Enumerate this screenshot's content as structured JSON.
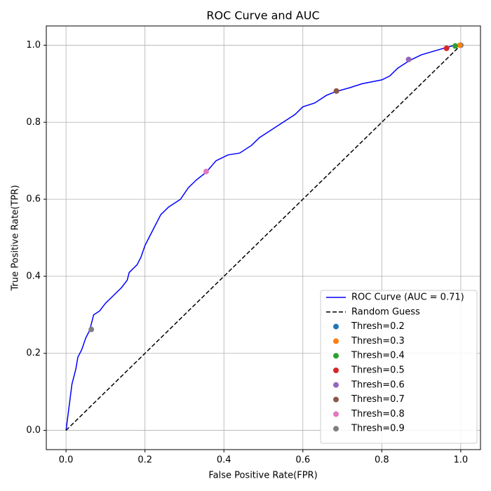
{
  "chart_data": {
    "type": "line",
    "title": "ROC Curve and AUC",
    "xlabel": "False Positive Rate(FPR)",
    "ylabel": "True Positive Rate(TPR)",
    "xlim": [
      -0.05,
      1.05
    ],
    "ylim": [
      -0.05,
      1.05
    ],
    "xticks": [
      {
        "value": 0,
        "label": "0.0"
      },
      0.2,
      0.4,
      0.6,
      0.8,
      {
        "value": 1,
        "label": "1.0"
      }
    ],
    "yticks": [
      {
        "value": 0,
        "label": "0.0"
      },
      0.2,
      0.4,
      0.6,
      0.8,
      {
        "value": 1,
        "label": "1.0"
      }
    ],
    "grid": true,
    "legend": "lower right",
    "series": [
      {
        "name": "ROC Curve (AUC = 0.71)",
        "type": "line",
        "color": "#0000ff",
        "x": [
          0,
          0.005,
          0.01,
          0.015,
          0.025,
          0.03,
          0.04,
          0.05,
          0.06,
          0.065,
          0.07,
          0.085,
          0.1,
          0.12,
          0.14,
          0.155,
          0.16,
          0.18,
          0.19,
          0.2,
          0.21,
          0.225,
          0.24,
          0.26,
          0.29,
          0.31,
          0.33,
          0.355,
          0.38,
          0.41,
          0.44,
          0.47,
          0.49,
          0.52,
          0.55,
          0.58,
          0.6,
          0.63,
          0.66,
          0.685,
          0.72,
          0.75,
          0.8,
          0.82,
          0.84,
          0.87,
          0.9,
          0.95,
          0.985,
          1.0
        ],
        "y": [
          0,
          0.04,
          0.08,
          0.12,
          0.16,
          0.19,
          0.21,
          0.24,
          0.26,
          0.28,
          0.3,
          0.31,
          0.33,
          0.35,
          0.37,
          0.39,
          0.41,
          0.43,
          0.45,
          0.48,
          0.5,
          0.53,
          0.56,
          0.58,
          0.6,
          0.63,
          0.65,
          0.67,
          0.7,
          0.715,
          0.72,
          0.74,
          0.76,
          0.78,
          0.8,
          0.82,
          0.84,
          0.85,
          0.87,
          0.88,
          0.89,
          0.9,
          0.91,
          0.92,
          0.94,
          0.96,
          0.975,
          0.99,
          1.0,
          1.0
        ]
      },
      {
        "name": "Random Guess",
        "type": "line",
        "color": "#000000",
        "dashed": true,
        "x": [
          0,
          1
        ],
        "y": [
          0,
          1
        ]
      },
      {
        "name": "Thresh=0.2",
        "type": "scatter",
        "color": "#1f77b4",
        "x": [
          1.0
        ],
        "y": [
          1.0
        ]
      },
      {
        "name": "Thresh=0.3",
        "type": "scatter",
        "color": "#ff7f0e",
        "x": [
          0.998
        ],
        "y": [
          1.0
        ]
      },
      {
        "name": "Thresh=0.4",
        "type": "scatter",
        "color": "#2ca02c",
        "x": [
          0.986
        ],
        "y": [
          0.998
        ]
      },
      {
        "name": "Thresh=0.5",
        "type": "scatter",
        "color": "#d62728",
        "x": [
          0.964
        ],
        "y": [
          0.992
        ]
      },
      {
        "name": "Thresh=0.6",
        "type": "scatter",
        "color": "#9467bd",
        "x": [
          0.868
        ],
        "y": [
          0.963
        ]
      },
      {
        "name": "Thresh=0.7",
        "type": "scatter",
        "color": "#8c564b",
        "x": [
          0.685
        ],
        "y": [
          0.881
        ]
      },
      {
        "name": "Thresh=0.8",
        "type": "scatter",
        "color": "#e377c2",
        "x": [
          0.355
        ],
        "y": [
          0.672
        ]
      },
      {
        "name": "Thresh=0.9",
        "type": "scatter",
        "color": "#7f7f7f",
        "x": [
          0.064
        ],
        "y": [
          0.262
        ]
      }
    ]
  }
}
